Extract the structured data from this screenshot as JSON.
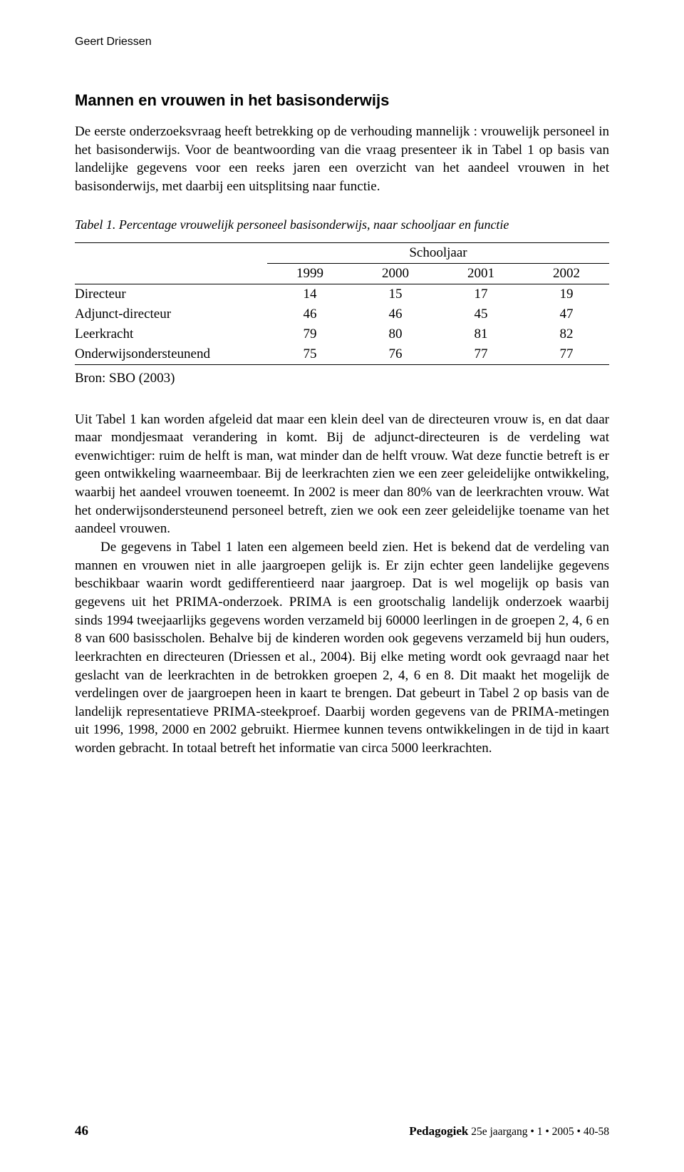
{
  "runningHeader": "Geert Driessen",
  "sectionHeading": "Mannen en vrouwen in het basisonderwijs",
  "intro": "De eerste onderzoeksvraag heeft betrekking op de verhouding mannelijk : vrouwelijk personeel in het basisonderwijs. Voor de beantwoording van die vraag presenteer ik in Tabel 1 op basis van landelijke gegevens voor een reeks jaren een overzicht van het aandeel vrouwen in het basisonderwijs, met daarbij een uitsplitsing naar functie.",
  "table1": {
    "caption": "Tabel 1. Percentage vrouwelijk personeel basisonderwijs, naar schooljaar en functie",
    "superHeader": "Schooljaar",
    "years": [
      "1999",
      "2000",
      "2001",
      "2002"
    ],
    "rows": [
      {
        "label": "Directeur",
        "values": [
          "14",
          "15",
          "17",
          "19"
        ]
      },
      {
        "label": "Adjunct-directeur",
        "values": [
          "46",
          "46",
          "45",
          "47"
        ]
      },
      {
        "label": "Leerkracht",
        "values": [
          "79",
          "80",
          "81",
          "82"
        ]
      },
      {
        "label": "Onderwijsondersteunend",
        "values": [
          "75",
          "76",
          "77",
          "77"
        ]
      }
    ],
    "source": "Bron: SBO (2003)"
  },
  "para2": "Uit Tabel 1 kan worden afgeleid dat maar een klein deel van de directeuren vrouw is, en dat daar maar mondjesmaat verandering in komt. Bij de adjunct-directeuren is de verdeling wat evenwichtiger: ruim de helft is man, wat minder dan de helft vrouw. Wat deze functie betreft is er geen ontwikkeling waarneembaar. Bij de leerkrachten zien we een zeer geleidelijke ontwikkeling, waarbij het aandeel vrouwen toeneemt. In 2002 is meer dan 80% van de leerkrachten vrouw. Wat het onderwijsondersteunend personeel betreft, zien we ook een zeer geleidelijke toename van het aandeel vrouwen.",
  "para3": "De gegevens in Tabel 1 laten een algemeen beeld zien. Het is bekend dat de verdeling van mannen en vrouwen niet in alle jaargroepen gelijk is. Er zijn echter geen landelijke gegevens beschikbaar waarin wordt gedifferentieerd naar jaargroep. Dat is wel mogelijk op basis van gegevens uit het PRIMA-onderzoek. PRIMA is een grootschalig landelijk onderzoek waarbij sinds 1994 tweejaarlijks gegevens worden verzameld bij 60000 leerlingen in de groepen 2, 4, 6 en 8 van 600 basisscholen. Behalve bij de kinderen worden ook gegevens verzameld bij hun ouders, leerkrachten en directeuren (Driessen et al., 2004). Bij elke meting wordt ook gevraagd naar het geslacht van de leerkrachten in de betrokken groepen 2, 4, 6 en 8. Dit maakt het mogelijk de verdelingen over de jaargroepen heen in kaart te brengen. Dat gebeurt in Tabel 2 op basis van de landelijk representatieve PRIMA-steekproef. Daarbij worden gegevens van de PRIMA-metingen uit 1996, 1998, 2000 en 2002 gebruikt. Hiermee kunnen tevens ontwikkelingen in de tijd in kaart worden gebracht. In totaal betreft het informatie van circa 5000 leerkrachten.",
  "footer": {
    "pageNumber": "46",
    "journalName": "Pedagogiek",
    "journalMeta": " 25e jaargang • 1 • 2005 • 40-58"
  }
}
